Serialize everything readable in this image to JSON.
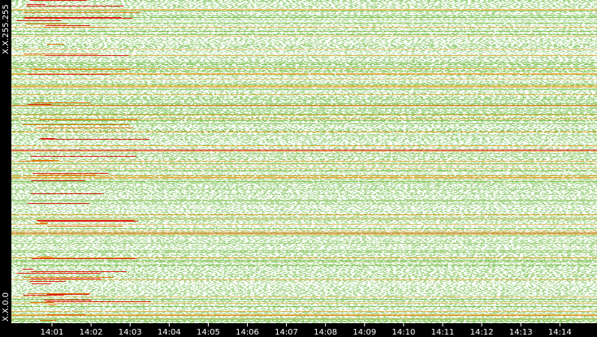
{
  "chart_data": {
    "type": "heatmap",
    "x_labels": [
      "14:01",
      "14:02",
      "14:03",
      "14:04",
      "14:05",
      "14:06",
      "14:07",
      "14:08",
      "14:09",
      "14:10",
      "14:11",
      "14:12",
      "14:13",
      "14:14"
    ],
    "y_labels": [
      "X.X.255.255",
      "X.X.0.0"
    ]
  }
}
